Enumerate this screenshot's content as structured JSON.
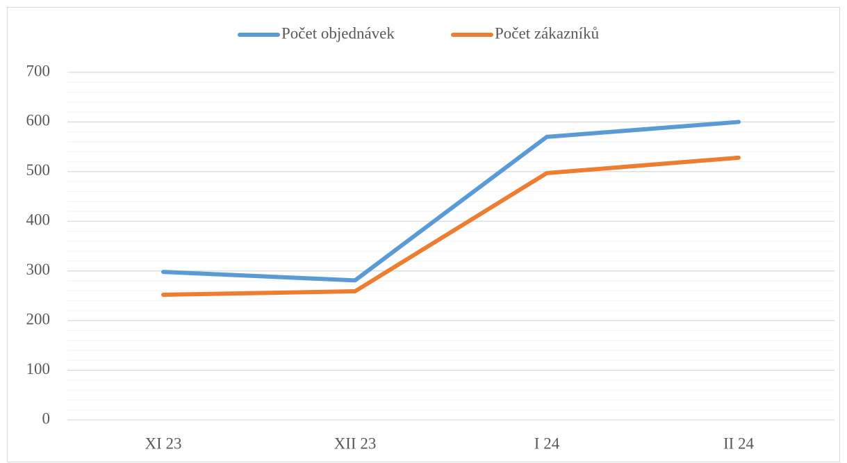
{
  "chart_data": {
    "type": "line",
    "categories": [
      "XI 23",
      "XII 23",
      "I 24",
      "II 24"
    ],
    "series": [
      {
        "name": "Počet objednávek",
        "color": "#5b9bd5",
        "values": [
          298,
          281,
          570,
          600
        ]
      },
      {
        "name": "Počet zákazníků",
        "color": "#ed7d31",
        "values": [
          252,
          259,
          497,
          528
        ]
      }
    ],
    "ylim": [
      0,
      700
    ],
    "yticks": [
      0,
      100,
      200,
      300,
      400,
      500,
      600,
      700
    ],
    "minor_yticks": [
      20,
      40,
      60,
      80,
      120,
      140,
      160,
      180,
      220,
      240,
      260,
      280,
      320,
      340,
      360,
      380,
      420,
      440,
      460,
      480,
      520,
      540,
      560,
      580,
      620,
      640,
      660,
      680
    ],
    "grid": true,
    "legend": "top"
  }
}
